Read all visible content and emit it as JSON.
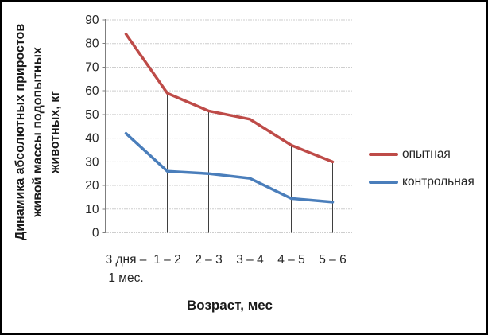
{
  "window": {
    "background": "#ffffff",
    "border_color": "#000000"
  },
  "chart_data": {
    "type": "line",
    "y_axis_title": "Динамика абсолютных приростов живой массы подопытных животных, кг",
    "y_axis_title_lines": [
      "Динамика абсолютных приростов",
      "живой массы подопытных",
      "животных, кг"
    ],
    "x_axis_title": "Возраст, мес",
    "categories": [
      "3 дня –\n1 мес.",
      "1 – 2",
      "2 – 3",
      "3 – 4",
      "4 – 5",
      "5 – 6"
    ],
    "y_ticks": [
      0,
      10,
      20,
      30,
      40,
      50,
      60,
      70,
      80,
      90
    ],
    "ylim": [
      0,
      90
    ],
    "grid": "horizontal-dotted",
    "drop_lines_to_axis": true,
    "legend_position": "right",
    "series": [
      {
        "name": "опытная",
        "color": "#be4b48",
        "values": [
          84,
          59,
          51.5,
          48,
          37,
          30
        ]
      },
      {
        "name": "контрольная",
        "color": "#4a7ebb",
        "values": [
          42,
          26,
          25,
          23,
          14.5,
          13
        ]
      }
    ],
    "style": {
      "grid_color": "#9c9c9c",
      "axis_color": "#7f7f7f",
      "drop_line_color": "#3f3f3f",
      "text_color": "#262626"
    }
  }
}
